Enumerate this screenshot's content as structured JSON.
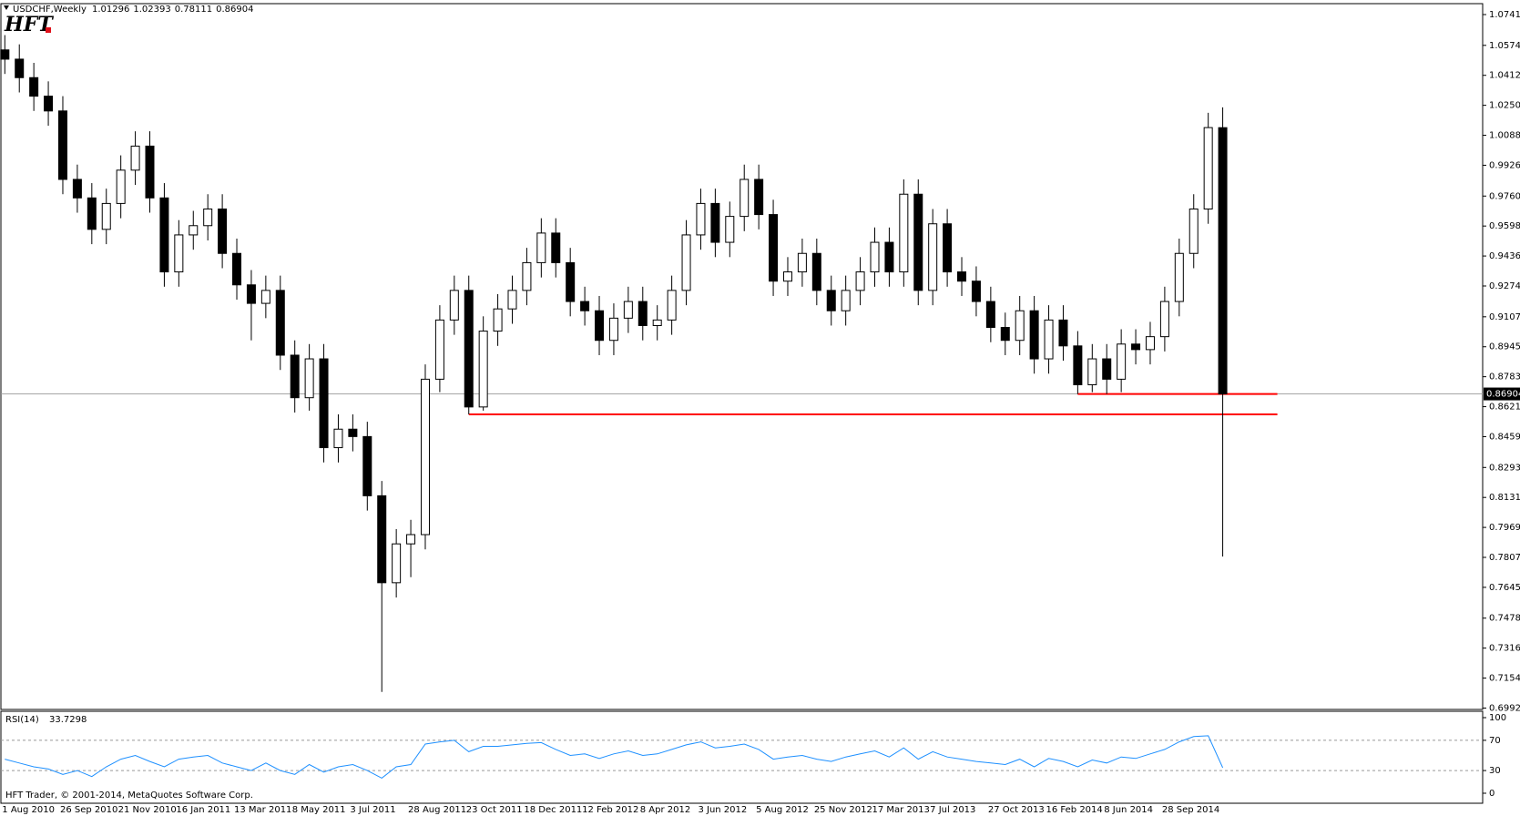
{
  "chart_data": {
    "type": "candlestick",
    "title": "USDCHF,Weekly",
    "logo": "HFT",
    "copyright": "HFT Trader, © 2001-2014, MetaQuotes Software Corp.",
    "categories": [
      "1 Aug 2010",
      null,
      null,
      null,
      "26 Sep 2010",
      null,
      null,
      null,
      "21 Nov 2010",
      null,
      null,
      null,
      "16 Jan 2011",
      null,
      null,
      null,
      "13 Mar 2011",
      null,
      null,
      null,
      "8 May 2011",
      null,
      null,
      null,
      "3 Jul 2011",
      null,
      null,
      null,
      "28 Aug 2011",
      null,
      null,
      null,
      "23 Oct 2011",
      null,
      null,
      null,
      "18 Dec 2011",
      null,
      null,
      null,
      "12 Feb 2012",
      null,
      null,
      null,
      "8 Apr 2012",
      null,
      null,
      null,
      "3 Jun 2012",
      null,
      null,
      null,
      "5 Aug 2012",
      null,
      null,
      null,
      "25 Nov 2012",
      null,
      null,
      null,
      "17 Mar 2013",
      null,
      null,
      null,
      "7 Jul 2013",
      null,
      null,
      null,
      "27 Oct 2013",
      null,
      null,
      null,
      "16 Feb 2014",
      null,
      null,
      null,
      "8 Jun 2014",
      null,
      null,
      null,
      "28 Sep 2014",
      null,
      null,
      null,
      null
    ],
    "open": [
      1.055,
      1.05,
      1.04,
      1.03,
      1.022,
      0.985,
      0.975,
      0.958,
      0.972,
      0.99,
      1.003,
      0.975,
      0.935,
      0.955,
      0.96,
      0.969,
      0.945,
      0.928,
      0.918,
      0.925,
      0.89,
      0.867,
      0.888,
      0.84,
      0.85,
      0.846,
      0.814,
      0.767,
      0.788,
      0.793,
      0.877,
      0.909,
      0.925,
      0.862,
      0.903,
      0.915,
      0.925,
      0.94,
      0.956,
      0.94,
      0.919,
      0.914,
      0.898,
      0.91,
      0.919,
      0.906,
      0.909,
      0.925,
      0.955,
      0.972,
      0.951,
      0.965,
      0.985,
      0.966,
      0.93,
      0.935,
      0.945,
      0.925,
      0.914,
      0.925,
      0.935,
      0.951,
      0.935,
      0.977,
      0.925,
      0.961,
      0.935,
      0.93,
      0.919,
      0.905,
      0.898,
      0.914,
      0.888,
      0.909,
      0.895,
      0.874,
      0.888,
      0.877,
      0.896,
      0.893,
      0.9,
      0.919,
      0.945,
      0.969,
      1.01296
    ],
    "high": [
      1.063,
      1.058,
      1.048,
      1.038,
      1.03,
      0.993,
      0.983,
      0.98,
      0.998,
      1.011,
      1.011,
      0.983,
      0.963,
      0.968,
      0.977,
      0.977,
      0.953,
      0.936,
      0.933,
      0.933,
      0.898,
      0.896,
      0.896,
      0.858,
      0.858,
      0.854,
      0.822,
      0.796,
      0.801,
      0.885,
      0.917,
      0.933,
      0.933,
      0.911,
      0.923,
      0.933,
      0.948,
      0.964,
      0.964,
      0.948,
      0.927,
      0.922,
      0.918,
      0.927,
      0.927,
      0.917,
      0.933,
      0.963,
      0.98,
      0.98,
      0.973,
      0.993,
      0.993,
      0.974,
      0.943,
      0.953,
      0.953,
      0.933,
      0.933,
      0.943,
      0.959,
      0.959,
      0.985,
      0.985,
      0.969,
      0.969,
      0.943,
      0.938,
      0.927,
      0.913,
      0.922,
      0.922,
      0.917,
      0.917,
      0.903,
      0.896,
      0.896,
      0.904,
      0.904,
      0.908,
      0.927,
      0.953,
      0.977,
      1.021,
      1.02393
    ],
    "low": [
      1.042,
      1.032,
      1.022,
      1.014,
      0.977,
      0.967,
      0.95,
      0.95,
      0.964,
      0.982,
      0.967,
      0.927,
      0.927,
      0.947,
      0.952,
      0.937,
      0.92,
      0.898,
      0.91,
      0.882,
      0.859,
      0.86,
      0.832,
      0.832,
      0.838,
      0.806,
      0.708,
      0.759,
      0.77,
      0.785,
      0.87,
      0.901,
      0.858,
      0.86,
      0.895,
      0.907,
      0.917,
      0.932,
      0.932,
      0.911,
      0.906,
      0.89,
      0.89,
      0.902,
      0.898,
      0.898,
      0.901,
      0.917,
      0.947,
      0.943,
      0.943,
      0.957,
      0.958,
      0.922,
      0.922,
      0.927,
      0.917,
      0.906,
      0.906,
      0.917,
      0.927,
      0.927,
      0.927,
      0.917,
      0.917,
      0.927,
      0.922,
      0.911,
      0.897,
      0.89,
      0.89,
      0.88,
      0.88,
      0.887,
      0.869,
      0.87,
      0.869,
      0.87,
      0.885,
      0.885,
      0.892,
      0.911,
      0.937,
      0.961,
      0.78111
    ],
    "close": [
      1.05,
      1.04,
      1.03,
      1.022,
      0.985,
      0.975,
      0.958,
      0.972,
      0.99,
      1.003,
      0.975,
      0.935,
      0.955,
      0.96,
      0.969,
      0.945,
      0.928,
      0.918,
      0.925,
      0.89,
      0.867,
      0.888,
      0.84,
      0.85,
      0.846,
      0.814,
      0.767,
      0.788,
      0.793,
      0.877,
      0.909,
      0.925,
      0.862,
      0.903,
      0.915,
      0.925,
      0.94,
      0.956,
      0.94,
      0.919,
      0.914,
      0.898,
      0.91,
      0.919,
      0.906,
      0.909,
      0.925,
      0.955,
      0.972,
      0.951,
      0.965,
      0.985,
      0.966,
      0.93,
      0.935,
      0.945,
      0.925,
      0.914,
      0.925,
      0.935,
      0.951,
      0.935,
      0.977,
      0.925,
      0.961,
      0.935,
      0.93,
      0.919,
      0.905,
      0.898,
      0.914,
      0.888,
      0.909,
      0.895,
      0.874,
      0.888,
      0.877,
      0.896,
      0.893,
      0.9,
      0.919,
      0.945,
      0.969,
      1.013,
      0.86904
    ],
    "ylim": [
      0.6985,
      1.08
    ],
    "yticks": [
      {
        "value": 1.0741,
        "label": "1.07410"
      },
      1.05745,
      1.04125,
      1.02505,
      1.00885,
      0.99265,
      {
        "value": 0.976,
        "label": "0.97600"
      },
      {
        "value": 0.9598,
        "label": "0.95980"
      },
      {
        "value": 0.9436,
        "label": "0.94360"
      },
      {
        "value": 0.9274,
        "label": "0.92740"
      },
      0.91075,
      0.89455,
      0.87835,
      0.86215,
      0.84595,
      {
        "value": 0.8293,
        "label": "0.82930"
      },
      {
        "value": 0.8131,
        "label": "0.81310"
      },
      {
        "value": 0.7969,
        "label": "0.79690"
      },
      {
        "value": 0.7807,
        "label": "0.78070"
      },
      {
        "value": 0.7645,
        "label": "0.76450"
      },
      0.74785,
      0.73165,
      0.71545,
      0.69925
    ],
    "levels": [
      {
        "value": 0.858,
        "color": "#ff0000"
      },
      {
        "value": 0.869,
        "color": "#ff0000"
      }
    ],
    "rsi": {
      "name": "RSI(14)",
      "color": "#1e90ff",
      "ylim": [
        0,
        100
      ],
      "yticks": [
        100,
        70,
        30,
        0
      ],
      "dashed": [
        70,
        30
      ],
      "values": [
        45,
        40,
        35,
        32,
        25,
        30,
        22,
        35,
        45,
        50,
        42,
        35,
        45,
        48,
        50,
        40,
        35,
        30,
        40,
        30,
        25,
        38,
        28,
        35,
        38,
        30,
        20,
        35,
        38,
        65,
        68,
        70,
        55,
        62,
        62,
        64,
        66,
        67,
        58,
        50,
        52,
        46,
        52,
        56,
        50,
        52,
        58,
        64,
        68,
        60,
        62,
        65,
        58,
        45,
        48,
        50,
        45,
        42,
        48,
        52,
        56,
        48,
        60,
        45,
        55,
        48,
        45,
        42,
        40,
        38,
        45,
        35,
        46,
        42,
        35,
        44,
        40,
        48,
        46,
        52,
        58,
        68,
        75,
        76,
        33.7298
      ]
    }
  }
}
